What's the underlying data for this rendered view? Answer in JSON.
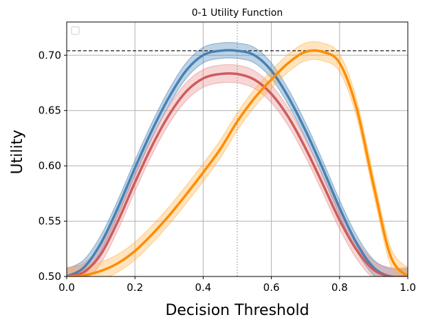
{
  "chart_data": {
    "type": "line",
    "title": "0-1 Utility Function",
    "xlabel": "Decision Threshold",
    "ylabel": "Utility",
    "xlim": [
      0.0,
      1.0
    ],
    "ylim": [
      0.5,
      0.73
    ],
    "x_ticks": [
      "0.0",
      "0.2",
      "0.4",
      "0.6",
      "0.8",
      "1.0"
    ],
    "y_ticks": [
      "0.50",
      "0.55",
      "0.60",
      "0.65",
      "0.70"
    ],
    "x_tick_values": [
      0.0,
      0.2,
      0.4,
      0.6,
      0.8,
      1.0
    ],
    "y_tick_values": [
      0.5,
      0.55,
      0.6,
      0.65,
      0.7
    ],
    "grid": true,
    "legend": {
      "placement": "top-left",
      "entries": []
    },
    "reference_lines": [
      {
        "orientation": "horizontal",
        "value": 0.704,
        "style": "dashed",
        "color": "#000000"
      },
      {
        "orientation": "vertical",
        "value": 0.5,
        "style": "dotted",
        "color": "#808080"
      }
    ],
    "series": [
      {
        "color": "#4682b4",
        "band_color": "#4682b4",
        "x": [
          0.0,
          0.05,
          0.1,
          0.15,
          0.2,
          0.25,
          0.3,
          0.35,
          0.4,
          0.45,
          0.5,
          0.55,
          0.6,
          0.65,
          0.7,
          0.75,
          0.8,
          0.85,
          0.9,
          0.95,
          1.0
        ],
        "y": [
          0.5,
          0.508,
          0.53,
          0.562,
          0.598,
          0.632,
          0.662,
          0.686,
          0.7,
          0.704,
          0.704,
          0.7,
          0.686,
          0.662,
          0.632,
          0.598,
          0.562,
          0.53,
          0.508,
          0.5,
          0.5
        ],
        "band": 0.007
      },
      {
        "color": "#cd5c5c",
        "band_color": "#e88a8a",
        "x": [
          0.0,
          0.05,
          0.1,
          0.15,
          0.2,
          0.25,
          0.3,
          0.35,
          0.4,
          0.45,
          0.5,
          0.55,
          0.6,
          0.65,
          0.7,
          0.75,
          0.8,
          0.85,
          0.9,
          0.95,
          1.0
        ],
        "y": [
          0.5,
          0.504,
          0.52,
          0.55,
          0.585,
          0.618,
          0.646,
          0.667,
          0.679,
          0.683,
          0.683,
          0.678,
          0.665,
          0.644,
          0.616,
          0.584,
          0.551,
          0.524,
          0.506,
          0.5,
          0.5
        ],
        "band": 0.008
      },
      {
        "color": "#ff8c00",
        "band_color": "#ffb347",
        "x": [
          0.0,
          0.05,
          0.1,
          0.15,
          0.2,
          0.25,
          0.3,
          0.35,
          0.4,
          0.45,
          0.5,
          0.55,
          0.6,
          0.65,
          0.7,
          0.75,
          0.8,
          0.85,
          0.9,
          0.95,
          1.0
        ],
        "y": [
          0.5,
          0.501,
          0.505,
          0.512,
          0.523,
          0.538,
          0.555,
          0.574,
          0.594,
          0.615,
          0.64,
          0.661,
          0.678,
          0.693,
          0.703,
          0.703,
          0.693,
          0.652,
          0.582,
          0.518,
          0.5
        ],
        "band": 0.008
      }
    ]
  }
}
